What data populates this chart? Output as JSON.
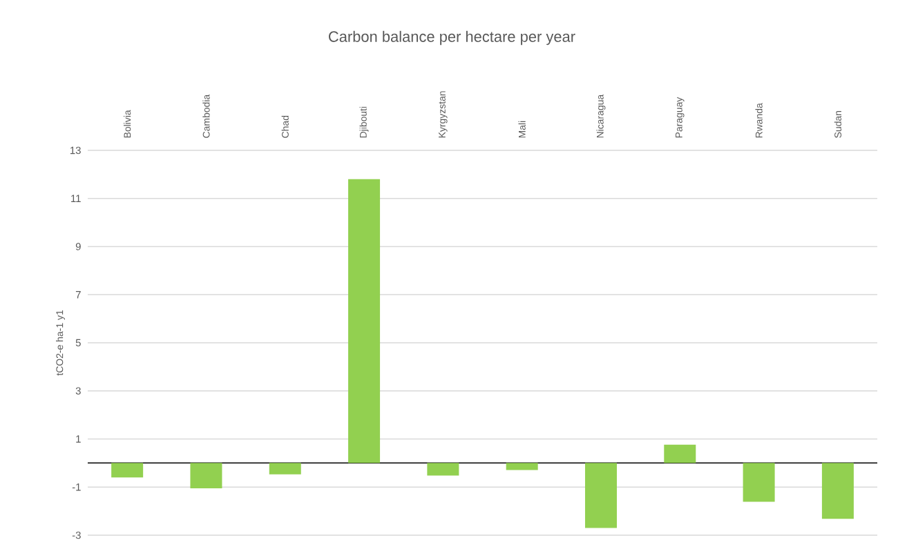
{
  "chart_data": {
    "type": "bar",
    "title": "Carbon balance per hectare per year",
    "ylabel": "tCO2-e ha-1 y1",
    "categories": [
      "Bolivia",
      "Cambodia",
      "Chad",
      "Djibouti",
      "Kyrgyzstan",
      "Mali",
      "Nicaragua",
      "Paraguay",
      "Rwanda",
      "Sudan"
    ],
    "values": [
      -0.6,
      -1.05,
      -0.47,
      11.8,
      -0.52,
      -0.29,
      -2.7,
      0.76,
      -1.61,
      -2.32
    ],
    "color": "#92d050",
    "ylim": [
      -3,
      13
    ],
    "yticks": [
      -3,
      -1,
      1,
      3,
      5,
      7,
      9,
      11,
      13
    ],
    "grid": "y"
  }
}
